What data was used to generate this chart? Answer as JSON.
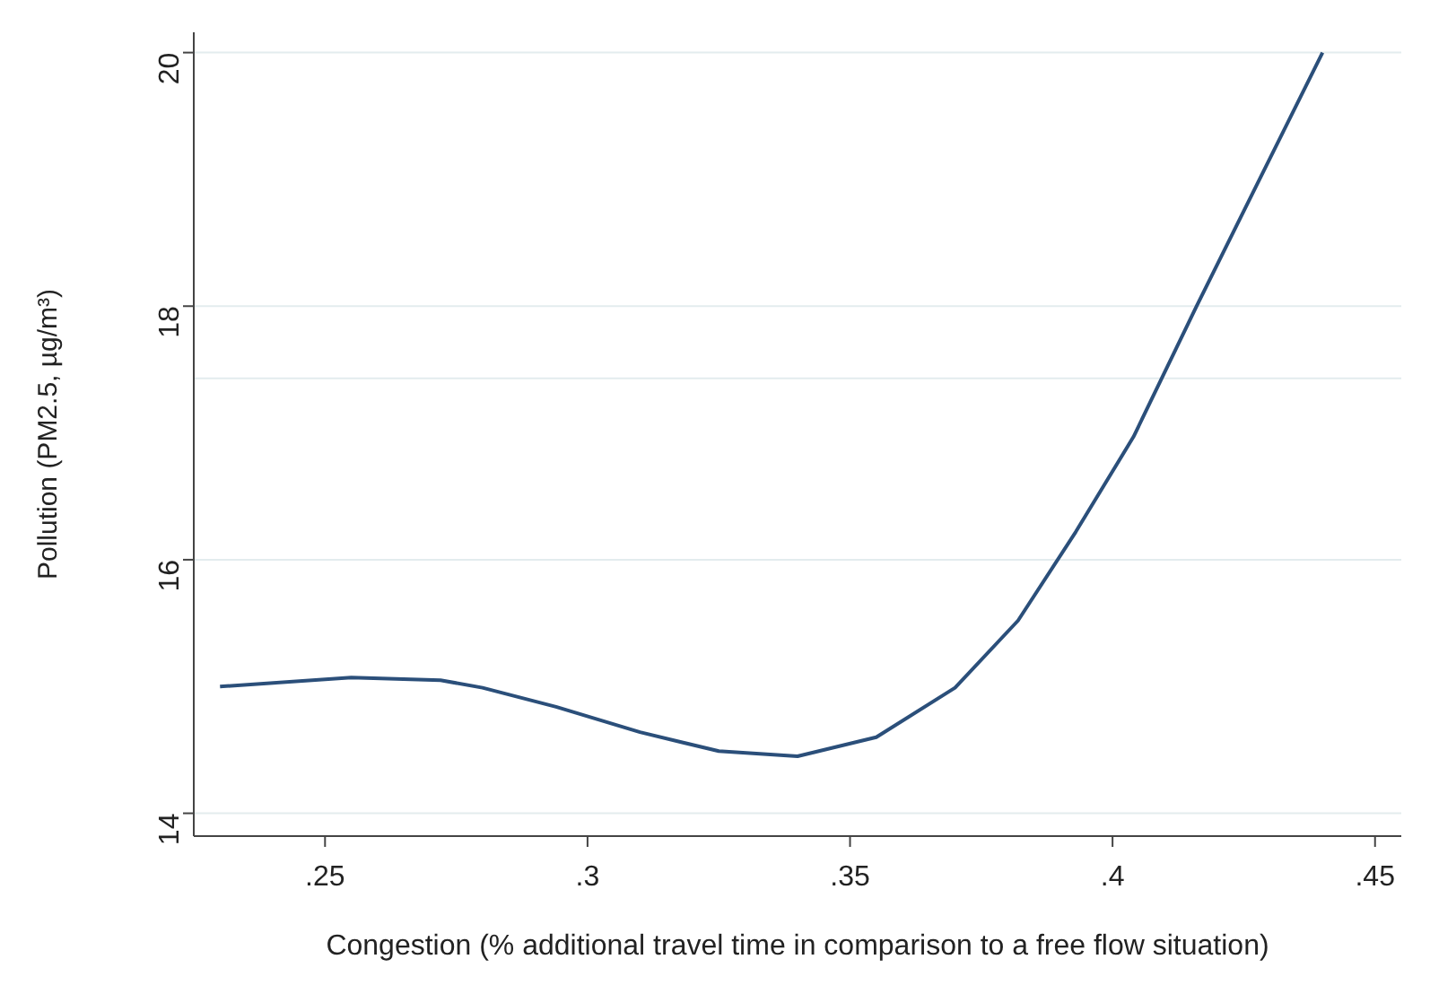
{
  "chart_data": {
    "type": "line",
    "xlabel": "Congestion (% additional travel time in comparison to a free flow situation)",
    "ylabel": "Pollution (PM2.5, µg/m³)",
    "x": [
      0.23,
      0.255,
      0.272,
      0.28,
      0.294,
      0.31,
      0.325,
      0.34,
      0.355,
      0.37,
      0.382,
      0.393,
      0.404,
      0.416,
      0.428,
      0.44
    ],
    "series": [
      {
        "color": "#2b4f7a",
        "values": [
          15.0,
          15.07,
          15.05,
          14.99,
          14.84,
          14.64,
          14.49,
          14.45,
          14.6,
          14.99,
          15.52,
          16.22,
          16.97,
          18.0,
          19.0,
          20.0
        ]
      }
    ],
    "xlim": [
      0.225,
      0.455
    ],
    "xticks": [
      {
        "value": 0.25,
        "label": ".25"
      },
      {
        "value": 0.3,
        "label": ".3"
      },
      {
        "value": 0.35,
        "label": ".35"
      },
      {
        "value": 0.4,
        "label": ".4"
      },
      {
        "value": 0.45,
        "label": ".45"
      }
    ],
    "ylim": [
      13.82,
      20.16
    ],
    "yticks": [
      14,
      16,
      18,
      20
    ],
    "grid": "y",
    "marker": "none",
    "line_style": "solid",
    "ref_lines": [
      {
        "axis": "y",
        "value": 17.43,
        "color": "#e3ecee"
      }
    ]
  }
}
